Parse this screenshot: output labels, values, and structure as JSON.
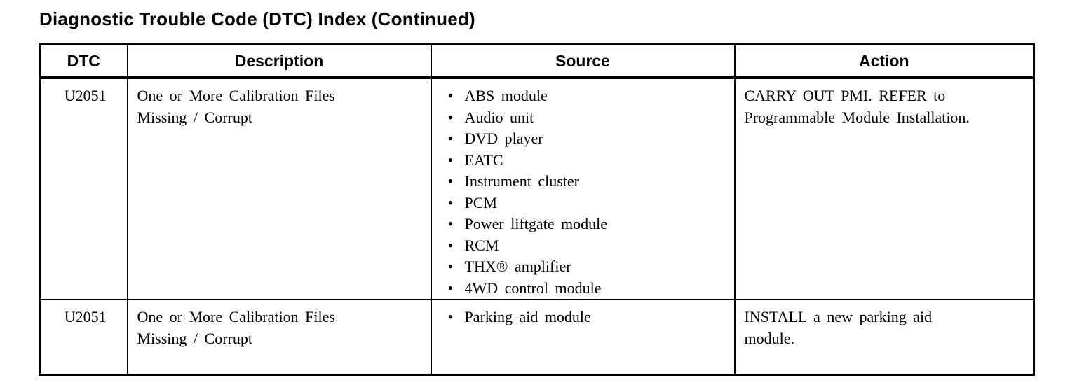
{
  "title": "Diagnostic Trouble Code (DTC) Index (Continued)",
  "table": {
    "headers": [
      "DTC",
      "Description",
      "Source",
      "Action"
    ],
    "rows": [
      {
        "dtc": "U2051",
        "description": "One or More Calibration Files\nMissing / Corrupt",
        "source": [
          "ABS module",
          "Audio unit",
          "DVD player",
          "EATC",
          "Instrument cluster",
          "PCM",
          "Power liftgate module",
          "RCM",
          "THX® amplifier",
          "4WD control module"
        ],
        "action": "CARRY OUT PMI. REFER to\nProgrammable Module Installation."
      },
      {
        "dtc": "U2051",
        "description": "One or More Calibration Files\nMissing / Corrupt",
        "source": [
          "Parking aid module"
        ],
        "action": "INSTALL a new parking aid\nmodule."
      }
    ]
  }
}
